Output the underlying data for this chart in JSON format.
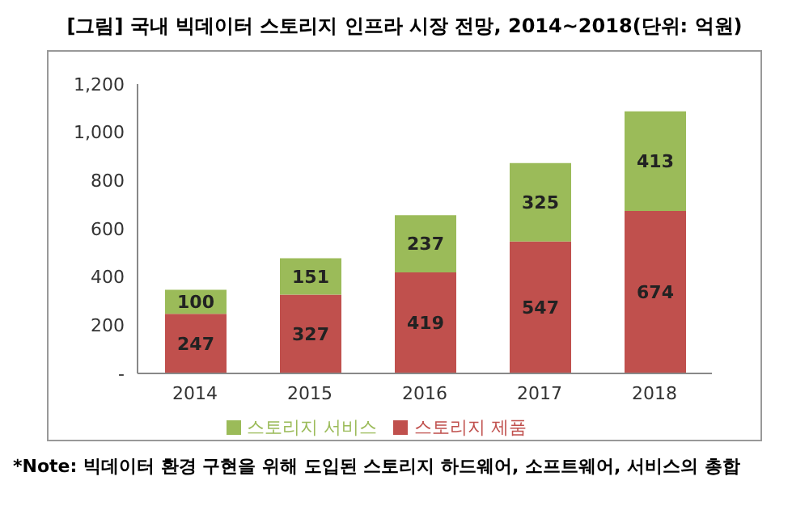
{
  "chart_data": {
    "type": "bar",
    "title": "[그림] 국내 빅데이터 스토리지 인프라 시장 전망, 2014~2018(단위: 억원)",
    "categories": [
      "2014",
      "2015",
      "2016",
      "2017",
      "2018"
    ],
    "series": [
      {
        "name": "스토리지 제품",
        "color": "#c0504d",
        "values": [
          247,
          327,
          419,
          547,
          674
        ]
      },
      {
        "name": "스토리지 서비스",
        "color": "#9bbb59",
        "values": [
          100,
          151,
          237,
          325,
          413
        ]
      }
    ],
    "stacked": true,
    "data_labels": true,
    "grid": false,
    "legend": "bottom",
    "ylim": [
      0,
      1200
    ],
    "yticks": [
      {
        "value": 0,
        "label": "-"
      },
      200,
      400,
      600,
      800,
      "1,000",
      "1,200"
    ],
    "annotations": [
      "*Note: 빅데이터 환경 구현을 위해 도입된 스토리지 하드웨어, 소프트웨어, 서비스의 총합"
    ]
  }
}
